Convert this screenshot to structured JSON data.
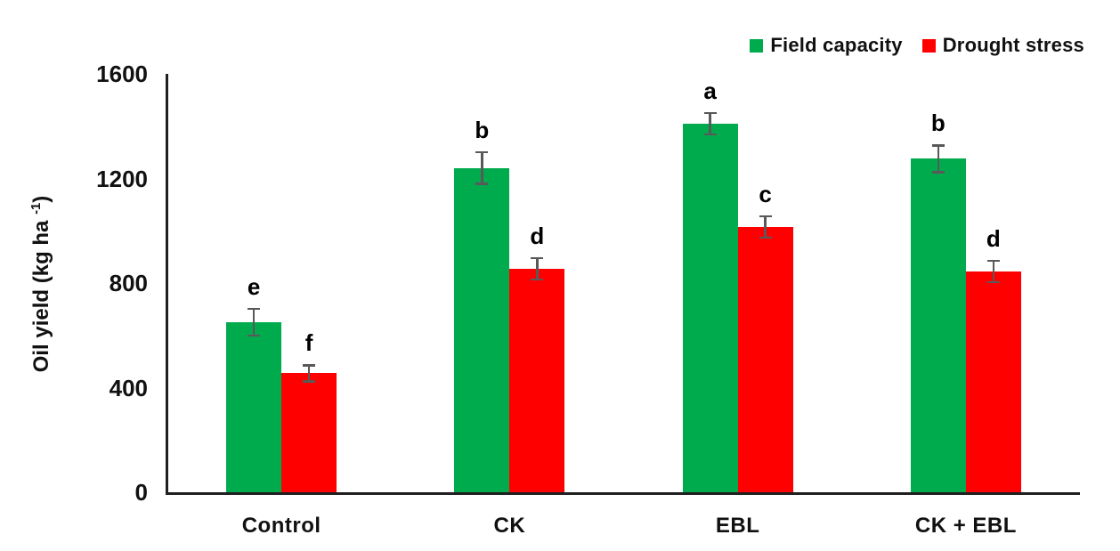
{
  "chart_data": {
    "type": "bar",
    "title": "",
    "xlabel": "",
    "ylabel": "Oil yield (kg ha⁻¹)",
    "ylabel_parts": {
      "prefix": "Oil yield (kg ha ",
      "superscript": "-1",
      "suffix": ")"
    },
    "categories": [
      "Control",
      "CK",
      "EBL",
      "CK + EBL"
    ],
    "series": [
      {
        "name": "Field capacity",
        "color": "#00AB4E",
        "values": [
          650,
          1240,
          1410,
          1275
        ],
        "errors": [
          55,
          65,
          45,
          55
        ],
        "sig_letters": [
          "e",
          "b",
          "a",
          "b"
        ]
      },
      {
        "name": "Drought stress",
        "color": "#FE0000",
        "values": [
          455,
          855,
          1015,
          845
        ],
        "errors": [
          35,
          45,
          45,
          45
        ],
        "sig_letters": [
          "f",
          "d",
          "c",
          "d"
        ]
      }
    ],
    "yticks": [
      0,
      400,
      800,
      1200,
      1600
    ],
    "ylim": [
      0,
      1600
    ],
    "grid": false,
    "legend_position": "top-right",
    "error_bar_color": "#595959",
    "axis_color": "#1F1F1F"
  }
}
